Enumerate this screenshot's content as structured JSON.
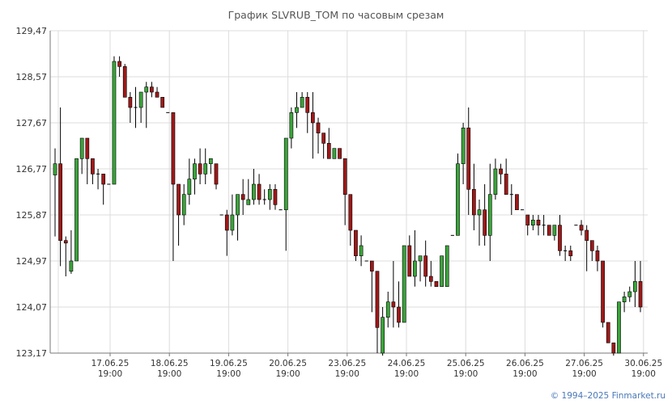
{
  "chart_data": {
    "type": "candlestick",
    "title": "График SLVRUB_TOM по часовым срезам",
    "colors": {
      "up": "#3aa53a",
      "down": "#a01818",
      "grid": "#dcdcdc",
      "axis": "#777777"
    },
    "y_ticks": [
      "129,47",
      "128,57",
      "127,67",
      "126,77",
      "125,87",
      "124,97",
      "124,07",
      "123,17"
    ],
    "ylim": [
      123.17,
      129.47
    ],
    "x_ticks": [
      {
        "date": "17.06.25",
        "time": "19:00"
      },
      {
        "date": "18.06.25",
        "time": "19:00"
      },
      {
        "date": "19.06.25",
        "time": "19:00"
      },
      {
        "date": "20.06.25",
        "time": "19:00"
      },
      {
        "date": "23.06.25",
        "time": "19:00"
      },
      {
        "date": "24.06.25",
        "time": "19:00"
      },
      {
        "date": "25.06.25",
        "time": "19:00"
      },
      {
        "date": "26.06.25",
        "time": "19:00"
      },
      {
        "date": "27.06.25",
        "time": "19:00"
      },
      {
        "date": "30.06.25",
        "time": "19:00"
      }
    ],
    "candles_ohlc": [
      [
        126.65,
        127.17,
        125.45,
        126.87
      ],
      [
        126.87,
        127.97,
        124.87,
        125.37
      ],
      [
        125.37,
        125.45,
        124.67,
        125.32
      ],
      [
        124.77,
        125.57,
        124.72,
        124.97
      ],
      [
        124.97,
        126.97,
        124.97,
        126.97
      ],
      [
        126.97,
        127.37,
        126.67,
        127.37
      ],
      [
        127.37,
        127.37,
        126.47,
        126.97
      ],
      [
        126.97,
        126.97,
        126.47,
        126.67
      ],
      [
        126.67,
        126.77,
        126.37,
        126.67
      ],
      [
        126.67,
        126.67,
        126.07,
        126.47
      ],
      [
        126.47,
        126.47,
        126.47,
        126.47
      ],
      [
        126.47,
        128.97,
        126.47,
        128.87
      ],
      [
        128.87,
        128.97,
        128.57,
        128.77
      ],
      [
        128.77,
        128.82,
        128.17,
        128.17
      ],
      [
        128.17,
        128.27,
        127.67,
        127.97
      ],
      [
        127.97,
        128.37,
        127.57,
        127.97
      ],
      [
        127.97,
        128.27,
        127.67,
        128.27
      ],
      [
        128.27,
        128.47,
        127.57,
        128.37
      ],
      [
        128.37,
        128.47,
        128.17,
        128.27
      ],
      [
        128.27,
        128.37,
        128.17,
        128.17
      ],
      [
        128.17,
        128.17,
        127.97,
        127.97
      ],
      [
        127.87,
        127.87,
        127.87,
        127.87
      ],
      [
        127.87,
        127.87,
        124.97,
        126.47
      ],
      [
        126.47,
        126.47,
        125.27,
        125.87
      ],
      [
        125.87,
        126.47,
        125.67,
        126.27
      ],
      [
        126.27,
        126.97,
        126.07,
        126.57
      ],
      [
        126.57,
        126.97,
        126.27,
        126.87
      ],
      [
        126.87,
        127.17,
        126.47,
        126.67
      ],
      [
        126.67,
        127.17,
        126.47,
        126.87
      ],
      [
        126.87,
        126.97,
        126.67,
        126.97
      ],
      [
        126.87,
        126.87,
        126.37,
        126.47
      ],
      [
        125.87,
        125.87,
        125.87,
        125.87
      ],
      [
        125.87,
        125.97,
        125.07,
        125.57
      ],
      [
        125.57,
        126.27,
        125.47,
        125.87
      ],
      [
        125.87,
        126.27,
        125.37,
        126.27
      ],
      [
        126.27,
        126.57,
        125.87,
        126.17
      ],
      [
        126.07,
        126.57,
        126.07,
        126.17
      ],
      [
        126.17,
        126.77,
        126.07,
        126.47
      ],
      [
        126.47,
        126.67,
        126.07,
        126.17
      ],
      [
        126.17,
        126.37,
        126.07,
        126.17
      ],
      [
        126.17,
        126.47,
        125.97,
        126.37
      ],
      [
        126.37,
        126.47,
        125.97,
        126.07
      ],
      [
        125.97,
        125.97,
        125.97,
        125.97
      ],
      [
        125.97,
        127.37,
        125.17,
        127.37
      ],
      [
        127.37,
        127.97,
        127.17,
        127.87
      ],
      [
        127.87,
        128.27,
        127.57,
        127.97
      ],
      [
        127.97,
        128.27,
        127.97,
        128.17
      ],
      [
        128.17,
        128.27,
        127.47,
        127.87
      ],
      [
        127.87,
        128.27,
        126.97,
        127.67
      ],
      [
        127.67,
        127.77,
        127.07,
        127.47
      ],
      [
        127.47,
        127.47,
        126.97,
        127.27
      ],
      [
        127.27,
        127.57,
        127.17,
        126.97
      ],
      [
        126.97,
        127.17,
        126.97,
        127.17
      ],
      [
        127.17,
        127.17,
        126.97,
        126.97
      ],
      [
        126.97,
        126.97,
        125.67,
        126.27
      ],
      [
        126.27,
        126.27,
        125.27,
        125.57
      ],
      [
        125.57,
        125.57,
        124.97,
        125.07
      ],
      [
        125.07,
        125.47,
        124.87,
        125.27
      ],
      [
        124.97,
        124.97,
        124.97,
        124.97
      ],
      [
        124.97,
        124.97,
        123.97,
        124.77
      ],
      [
        124.77,
        124.77,
        123.17,
        123.67
      ],
      [
        123.17,
        124.07,
        123.07,
        123.87
      ],
      [
        123.87,
        124.37,
        123.67,
        124.17
      ],
      [
        124.17,
        124.97,
        123.67,
        124.07
      ],
      [
        124.07,
        124.57,
        123.67,
        123.77
      ],
      [
        123.77,
        125.07,
        123.77,
        125.27
      ],
      [
        125.27,
        125.47,
        124.67,
        124.67
      ],
      [
        124.67,
        125.57,
        124.47,
        124.97
      ],
      [
        124.97,
        125.07,
        124.57,
        125.07
      ],
      [
        125.07,
        125.37,
        124.47,
        124.67
      ],
      [
        124.67,
        124.97,
        124.47,
        124.57
      ],
      [
        124.57,
        124.57,
        124.47,
        124.47
      ],
      [
        124.47,
        125.07,
        124.47,
        125.07
      ],
      [
        124.47,
        125.27,
        124.47,
        125.27
      ],
      [
        125.47,
        125.47,
        125.47,
        125.47
      ],
      [
        125.47,
        127.07,
        125.47,
        126.87
      ],
      [
        126.87,
        127.67,
        126.47,
        127.57
      ],
      [
        127.57,
        127.97,
        125.87,
        126.37
      ],
      [
        126.37,
        126.87,
        125.57,
        125.87
      ],
      [
        125.87,
        126.17,
        125.27,
        125.97
      ],
      [
        125.97,
        126.47,
        125.27,
        125.47
      ],
      [
        125.47,
        126.87,
        124.97,
        126.27
      ],
      [
        126.27,
        126.97,
        126.17,
        126.77
      ],
      [
        126.77,
        126.87,
        126.47,
        126.67
      ],
      [
        126.67,
        126.97,
        126.47,
        126.27
      ],
      [
        126.27,
        126.47,
        125.87,
        126.27
      ],
      [
        126.27,
        126.27,
        126.07,
        125.97
      ],
      [
        125.97,
        125.97,
        125.97,
        125.97
      ],
      [
        125.87,
        125.87,
        125.47,
        125.67
      ],
      [
        125.67,
        125.87,
        125.57,
        125.77
      ],
      [
        125.77,
        125.87,
        125.47,
        125.67
      ],
      [
        125.67,
        125.87,
        125.47,
        125.67
      ],
      [
        125.67,
        125.67,
        125.47,
        125.47
      ],
      [
        125.47,
        125.67,
        125.37,
        125.67
      ],
      [
        125.67,
        125.87,
        125.07,
        125.17
      ],
      [
        125.17,
        125.27,
        124.97,
        125.17
      ],
      [
        125.17,
        125.27,
        124.97,
        125.07
      ],
      [
        125.67,
        125.67,
        125.67,
        125.67
      ],
      [
        125.67,
        125.77,
        125.47,
        125.57
      ],
      [
        125.57,
        125.67,
        124.77,
        125.37
      ],
      [
        125.37,
        125.37,
        124.97,
        125.17
      ],
      [
        125.17,
        125.27,
        124.77,
        124.97
      ],
      [
        124.97,
        124.97,
        123.67,
        123.77
      ],
      [
        123.77,
        123.77,
        123.37,
        123.37
      ],
      [
        123.37,
        123.37,
        122.97,
        123.17
      ],
      [
        123.17,
        124.17,
        123.17,
        124.17
      ],
      [
        124.17,
        124.37,
        123.97,
        124.27
      ],
      [
        124.27,
        124.47,
        124.17,
        124.37
      ],
      [
        124.37,
        124.97,
        124.07,
        124.57
      ],
      [
        124.57,
        124.97,
        123.97,
        124.07
      ]
    ]
  },
  "footer": {
    "copyright": "© 1994–2025 Finmarket.ru"
  }
}
